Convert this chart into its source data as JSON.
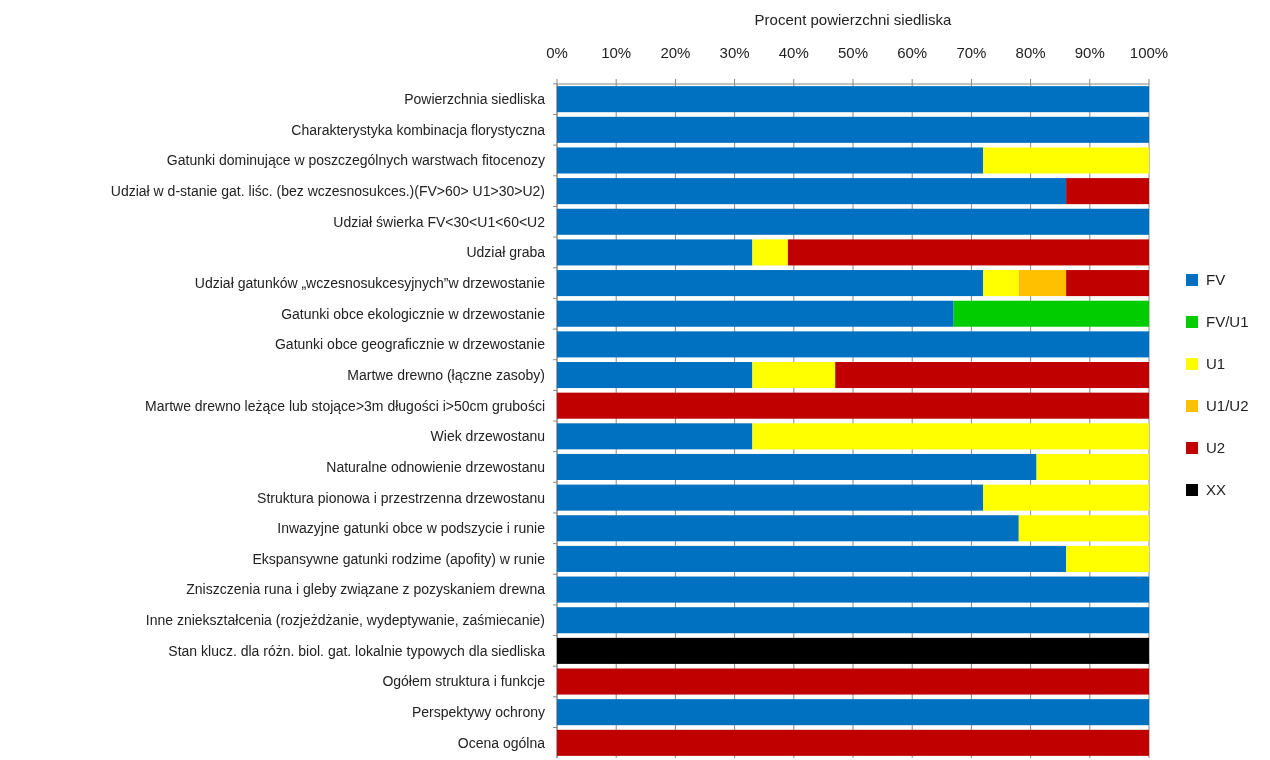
{
  "chart_data": {
    "type": "bar",
    "orientation": "horizontal",
    "stacked": true,
    "xlabel": "Procent powierzchni siedliska",
    "categories": [
      "Powierzchnia siedliska",
      "Charakterystyka kombinacja florystyczna",
      "Gatunki dominujące w poszczególnych warstwach fitocenozy",
      "Udział w d-stanie gat. liśc. (bez wczesnosukces.)(FV>60> U1>30>U2)",
      "Udział świerka FV<30<U1<60<U2",
      "Udział graba",
      "Udział gatunków „wczesnosukcesyjnych”w drzewostanie ",
      "Gatunki obce  ekologicznie w drzewostanie",
      "Gatunki obce geograficznie w drzewostanie",
      "Martwe drewno (łączne zasoby)",
      "Martwe drewno leżące lub stojące>3m długości i>50cm grubości",
      "Wiek drzewostanu",
      "Naturalne odnowienie drzewostanu",
      "Struktura pionowa i przestrzenna drzewostanu",
      "Inwazyjne gatunki obce w podszycie i runie ",
      "Ekspansywne gatunki rodzime (apofity) w runie",
      "Zniszczenia runa i gleby związane z pozyskaniem drewna",
      "Inne zniekształcenia (rozjeżdżanie, wydeptywanie, zaśmiecanie) ",
      "Stan klucz. dla różn. biol. gat. lokalnie typowych dla siedliska",
      "Ogółem struktura i funkcje",
      "Perspektywy ochrony",
      "Ocena ogólna"
    ],
    "series": [
      {
        "name": "FV",
        "color": "#0070c0",
        "values": [
          100,
          100,
          72,
          86,
          100,
          33,
          72,
          67,
          100,
          33,
          0,
          33,
          81,
          72,
          78,
          86,
          100,
          100,
          0,
          0,
          100,
          0
        ]
      },
      {
        "name": "FV/U1",
        "color": "#00cc00",
        "values": [
          0,
          0,
          0,
          0,
          0,
          0,
          0,
          33,
          0,
          0,
          0,
          0,
          0,
          0,
          0,
          0,
          0,
          0,
          0,
          0,
          0,
          0
        ]
      },
      {
        "name": "U1",
        "color": "#ffff00",
        "values": [
          0,
          0,
          28,
          0,
          0,
          6,
          6,
          0,
          0,
          14,
          0,
          67,
          19,
          28,
          22,
          14,
          0,
          0,
          0,
          0,
          0,
          0
        ]
      },
      {
        "name": "U1/U2",
        "color": "#ffc000",
        "values": [
          0,
          0,
          0,
          0,
          0,
          0,
          8,
          0,
          0,
          0,
          0,
          0,
          0,
          0,
          0,
          0,
          0,
          0,
          0,
          0,
          0,
          0
        ]
      },
      {
        "name": "U2",
        "color": "#c00000",
        "values": [
          0,
          0,
          0,
          14,
          0,
          61,
          14,
          0,
          0,
          53,
          100,
          0,
          0,
          0,
          0,
          0,
          0,
          0,
          0,
          100,
          0,
          100
        ]
      },
      {
        "name": "XX",
        "color": "#000000",
        "values": [
          0,
          0,
          0,
          0,
          0,
          0,
          0,
          0,
          0,
          0,
          0,
          0,
          0,
          0,
          0,
          0,
          0,
          0,
          100,
          0,
          0,
          0
        ]
      }
    ],
    "xlim": [
      0,
      100
    ],
    "xticks": [
      {
        "value": 0,
        "label": "0%"
      },
      {
        "value": 10,
        "label": "10%"
      },
      {
        "value": 20,
        "label": "20%"
      },
      {
        "value": 30,
        "label": "30%"
      },
      {
        "value": 40,
        "label": "40%"
      },
      {
        "value": 50,
        "label": "50%"
      },
      {
        "value": 60,
        "label": "60%"
      },
      {
        "value": 70,
        "label": "70%"
      },
      {
        "value": 80,
        "label": "80%"
      },
      {
        "value": 90,
        "label": "90%"
      },
      {
        "value": 100,
        "label": "100%"
      }
    ],
    "grid": "x",
    "legend": "right"
  }
}
